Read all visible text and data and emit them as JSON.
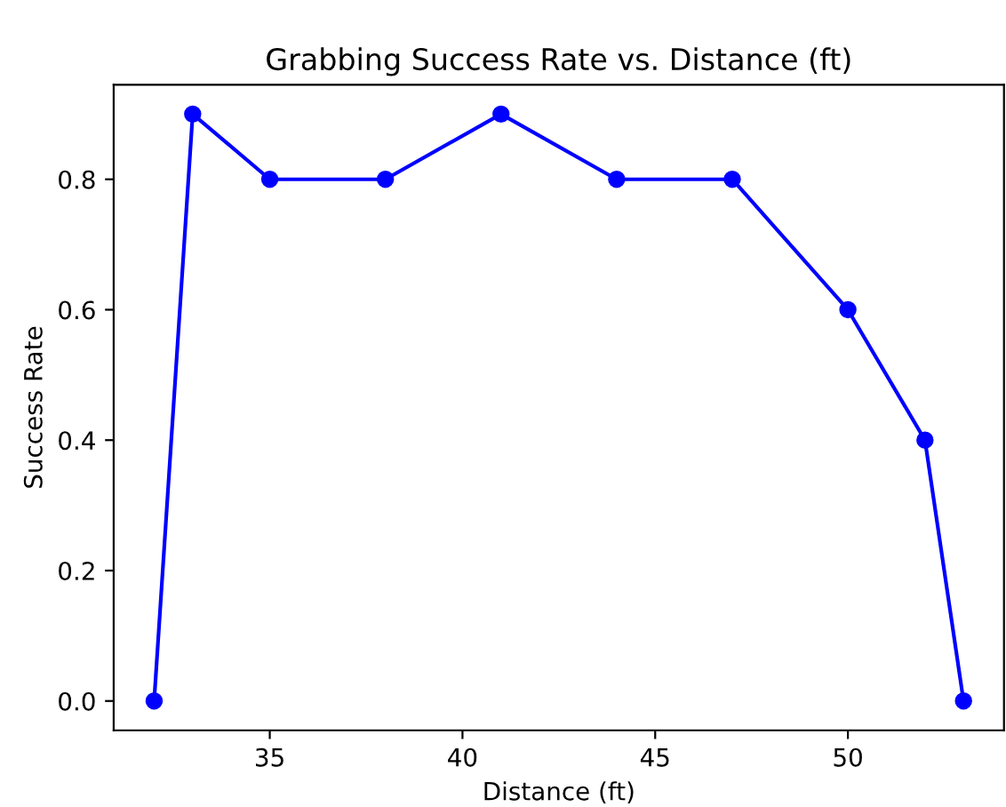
{
  "chart_data": {
    "type": "line",
    "title": "Grabbing Success Rate vs. Distance (ft)",
    "xlabel": "Distance (ft)",
    "ylabel": "Success Rate",
    "x": [
      32,
      33,
      35,
      38,
      41,
      44,
      47,
      50,
      52,
      53
    ],
    "series": [
      {
        "color": "#0000ff",
        "values": [
          0.0,
          0.9,
          0.8,
          0.8,
          0.9,
          0.8,
          0.8,
          0.6,
          0.4,
          0.0
        ]
      }
    ],
    "xlim": [
      30.95,
      54.05
    ],
    "ylim": [
      -0.045,
      0.945
    ],
    "xticks": [
      35,
      40,
      45,
      50
    ],
    "yticks": [
      {
        "value": 0,
        "label": "0.0"
      },
      {
        "value": 0.2,
        "label": "0.2"
      },
      {
        "value": 0.4,
        "label": "0.4"
      },
      {
        "value": 0.6,
        "label": "0.6"
      },
      {
        "value": 0.8,
        "label": "0.8"
      }
    ],
    "marker": "circle",
    "line_style": "solid",
    "grid": false
  }
}
